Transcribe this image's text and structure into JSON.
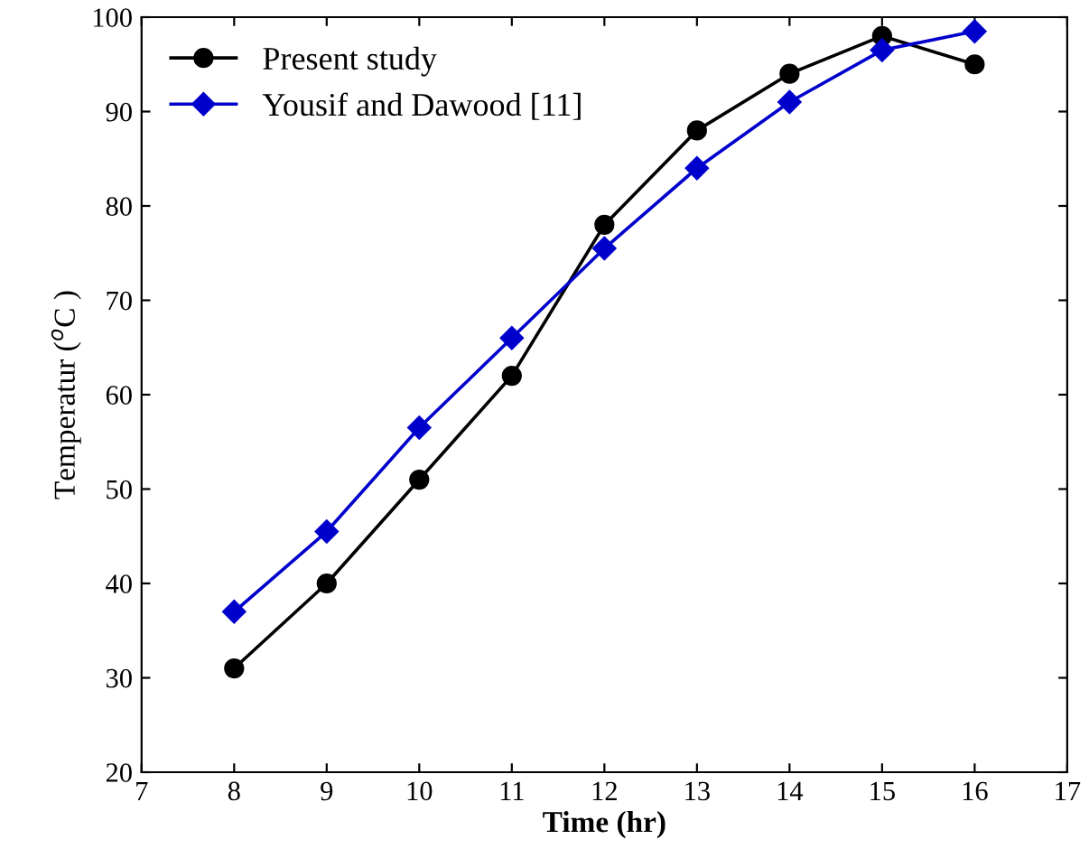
{
  "chart_data": {
    "type": "line",
    "xlabel": "Time (hr)",
    "ylabel": "Temperatur ($^{o}$C )",
    "x": [
      8,
      9,
      10,
      11,
      12,
      13,
      14,
      15,
      16
    ],
    "series": [
      {
        "name": "Present study",
        "color": "#000000",
        "marker": "circle",
        "values": [
          31,
          40,
          51,
          62,
          78,
          88,
          94,
          98,
          95
        ]
      },
      {
        "name": "Yousif and Dawood [11]",
        "color": "#0000cc",
        "marker": "diamond",
        "values": [
          37,
          45.5,
          56.5,
          66,
          75.5,
          84,
          91,
          96.5,
          98.5
        ]
      }
    ],
    "xlim": [
      7,
      17
    ],
    "xticks": [
      7,
      8,
      9,
      10,
      11,
      12,
      13,
      14,
      15,
      16,
      17
    ],
    "ylim": [
      20,
      100
    ],
    "yticks": [
      20,
      30,
      40,
      50,
      60,
      70,
      80,
      90,
      100
    ],
    "grid": false,
    "legend": "top left",
    "line_style": "solid"
  }
}
